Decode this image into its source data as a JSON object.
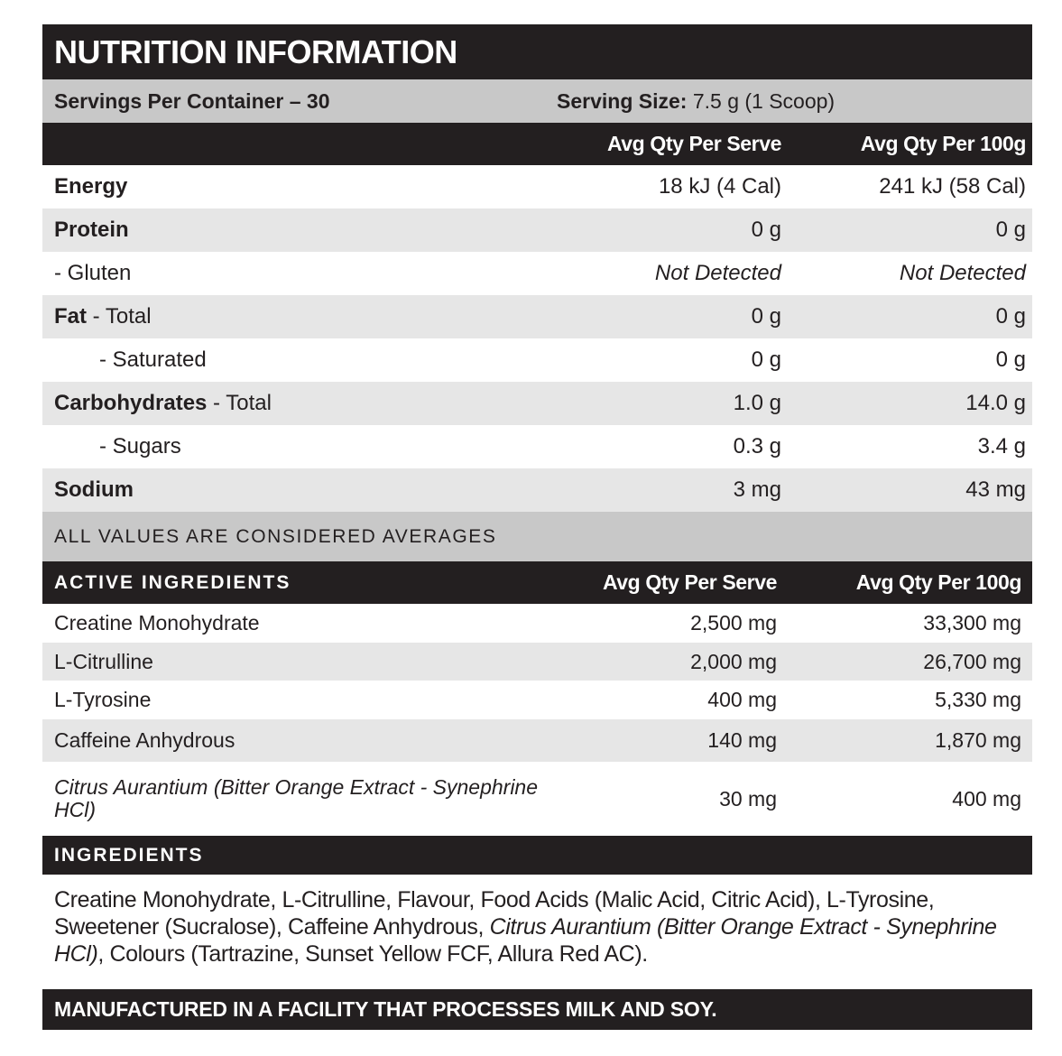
{
  "title": "NUTRITION INFORMATION",
  "servings": {
    "per_container": "Servings Per Container – 30",
    "size_label": "Serving Size:",
    "size_value": " 7.5 g (1 Scoop)"
  },
  "nutrition_header": {
    "col_serve": "Avg Qty Per Serve",
    "col_100g": "Avg Qty Per 100g"
  },
  "nutrition_rows": [
    {
      "name": "Energy",
      "sub": "",
      "serve": "18 kJ (4 Cal)",
      "per100": "241 kJ (58 Cal)"
    },
    {
      "name": "Protein",
      "sub": "",
      "serve": "0 g",
      "per100": "0 g"
    },
    {
      "name": "",
      "sub": "- Gluten",
      "serve": "Not Detected",
      "per100": "Not Detected"
    },
    {
      "name": "Fat",
      "sub": " - Total",
      "serve": "0 g",
      "per100": "0 g"
    },
    {
      "name": "",
      "sub": "- Saturated",
      "serve": "0 g",
      "per100": "0 g"
    },
    {
      "name": "Carbohydrates",
      "sub": " - Total",
      "serve": "1.0 g",
      "per100": "14.0 g"
    },
    {
      "name": "",
      "sub": "- Sugars",
      "serve": "0.3 g",
      "per100": "3.4 g"
    },
    {
      "name": "Sodium",
      "sub": "",
      "serve": "3 mg",
      "per100": "43 mg"
    }
  ],
  "averages_note": "ALL VALUES ARE CONSIDERED AVERAGES",
  "active_header": {
    "title": "ACTIVE INGREDIENTS",
    "col_serve": "Avg Qty Per Serve",
    "col_100g": "Avg Qty Per 100g"
  },
  "active_rows": [
    {
      "name": "Creatine Monohydrate",
      "serve": "2,500 mg",
      "per100": "33,300 mg"
    },
    {
      "name": "L-Citrulline",
      "serve": "2,000 mg",
      "per100": "26,700 mg"
    },
    {
      "name": "L-Tyrosine",
      "serve": "400 mg",
      "per100": "5,330 mg"
    },
    {
      "name": "Caffeine Anhydrous",
      "serve": "140 mg",
      "per100": "1,870 mg"
    },
    {
      "name": "Citrus Aurantium (Bitter Orange Extract - Synephrine HCl)",
      "serve": "30 mg",
      "per100": "400 mg"
    }
  ],
  "ingredients": {
    "title": "INGREDIENTS",
    "text_1": "Creatine Monohydrate, L-Citrulline, Flavour, Food Acids (Malic Acid, Citric Acid), L-Tyrosine, Sweetener (Sucralose), Caffeine Anhydrous, ",
    "text_italic": "Citrus Aurantium (Bitter Orange Extract - Synephrine HCl)",
    "text_2": ", Colours (Tartrazine, Sunset Yellow FCF, Allura Red AC)."
  },
  "footer": "MANUFACTURED IN A FACILITY THAT PROCESSES MILK AND SOY."
}
